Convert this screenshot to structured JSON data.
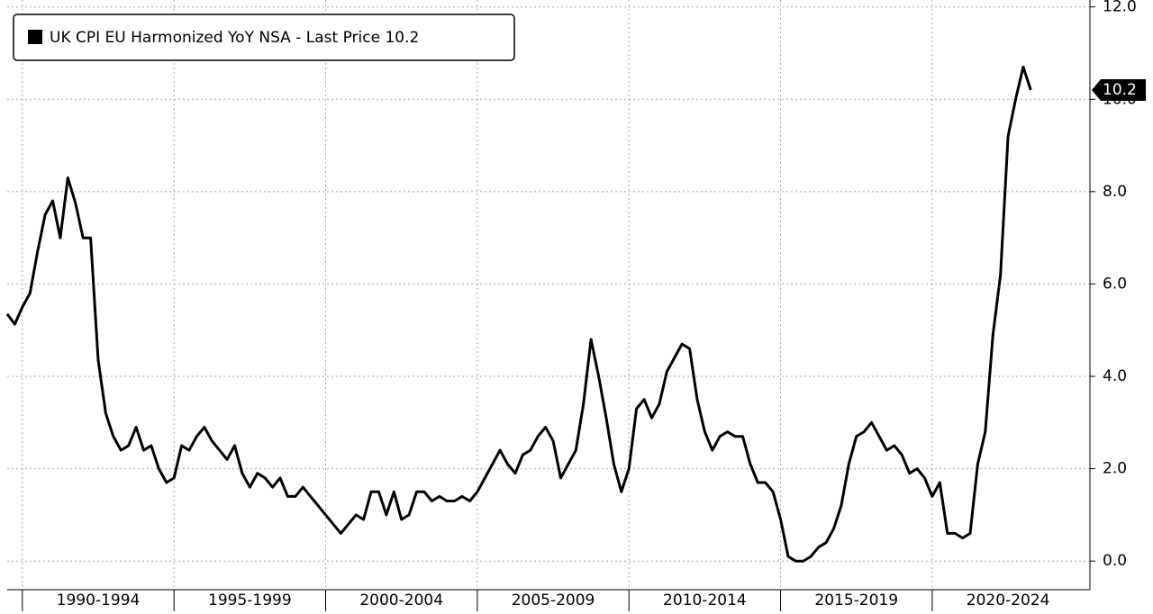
{
  "chart_data": {
    "type": "line",
    "x": [
      1989.5,
      1989.75,
      1990,
      1990.25,
      1990.5,
      1990.75,
      1991,
      1991.25,
      1991.5,
      1991.75,
      1992,
      1992.25,
      1992.5,
      1992.75,
      1993,
      1993.25,
      1993.5,
      1993.75,
      1994,
      1994.25,
      1994.5,
      1994.75,
      1995,
      1995.25,
      1995.5,
      1995.75,
      1996,
      1996.25,
      1996.5,
      1996.75,
      1997,
      1997.25,
      1997.5,
      1997.75,
      1998,
      1998.25,
      1998.5,
      1998.75,
      1999,
      1999.25,
      1999.5,
      1999.75,
      2000,
      2000.25,
      2000.5,
      2000.75,
      2001,
      2001.25,
      2001.5,
      2001.75,
      2002,
      2002.25,
      2002.5,
      2002.75,
      2003,
      2003.25,
      2003.5,
      2003.75,
      2004,
      2004.25,
      2004.5,
      2004.75,
      2005,
      2005.25,
      2005.5,
      2005.75,
      2006,
      2006.25,
      2006.5,
      2006.75,
      2007,
      2007.25,
      2007.5,
      2007.75,
      2008,
      2008.25,
      2008.5,
      2008.75,
      2009,
      2009.25,
      2009.5,
      2009.75,
      2010,
      2010.25,
      2010.5,
      2010.75,
      2011,
      2011.25,
      2011.5,
      2011.75,
      2012,
      2012.25,
      2012.5,
      2012.75,
      2013,
      2013.25,
      2013.5,
      2013.75,
      2014,
      2014.25,
      2014.5,
      2014.75,
      2015,
      2015.25,
      2015.5,
      2015.75,
      2016,
      2016.25,
      2016.5,
      2016.75,
      2017,
      2017.25,
      2017.5,
      2017.75,
      2018,
      2018.25,
      2018.5,
      2018.75,
      2019,
      2019.25,
      2019.5,
      2019.75,
      2020,
      2020.25,
      2020.5,
      2020.75,
      2021,
      2021.25,
      2021.5,
      2021.75,
      2022,
      2022.25,
      2022.5,
      2022.75,
      2023,
      2023.25
    ],
    "series": [
      {
        "name": "UK CPI EU Harmonized YoY NSA - Last Price",
        "color": "#000000",
        "values": [
          5.35,
          5.13,
          5.5,
          5.8,
          6.7,
          7.5,
          7.8,
          7.0,
          8.3,
          7.75,
          7.0,
          7.0,
          4.35,
          3.2,
          2.7,
          2.4,
          2.5,
          2.9,
          2.4,
          2.5,
          2.0,
          1.7,
          1.8,
          2.5,
          2.4,
          2.7,
          2.9,
          2.6,
          2.4,
          2.2,
          2.5,
          1.9,
          1.6,
          1.9,
          1.8,
          1.6,
          1.8,
          1.4,
          1.4,
          1.6,
          1.4,
          1.2,
          1.0,
          0.8,
          0.6,
          0.8,
          1.0,
          0.9,
          1.5,
          1.5,
          1.0,
          1.5,
          0.9,
          1.0,
          1.5,
          1.5,
          1.3,
          1.4,
          1.3,
          1.3,
          1.4,
          1.3,
          1.5,
          1.8,
          2.1,
          2.4,
          2.1,
          1.9,
          2.3,
          2.4,
          2.7,
          2.9,
          2.6,
          1.8,
          2.1,
          2.4,
          3.4,
          4.8,
          4.0,
          3.1,
          2.1,
          1.5,
          2.0,
          3.3,
          3.5,
          3.1,
          3.4,
          4.1,
          4.4,
          4.7,
          4.6,
          3.5,
          2.8,
          2.4,
          2.7,
          2.8,
          2.7,
          2.7,
          2.1,
          1.7,
          1.7,
          1.5,
          0.9,
          0.1,
          0.0,
          0.0,
          0.1,
          0.3,
          0.4,
          0.7,
          1.2,
          2.1,
          2.7,
          2.8,
          3.0,
          2.7,
          2.4,
          2.5,
          2.3,
          1.9,
          2.0,
          1.8,
          1.4,
          1.7,
          0.6,
          0.6,
          0.5,
          0.6,
          2.1,
          2.8,
          4.9,
          6.2,
          9.2,
          10.0,
          10.7,
          10.2
        ]
      }
    ],
    "xlim": [
      1989.5,
      2025.2
    ],
    "xticks": [
      {
        "value": 1992.5,
        "label": "1990-1994"
      },
      {
        "value": 1997.5,
        "label": "1995-1999"
      },
      {
        "value": 2002.5,
        "label": "2000-2004"
      },
      {
        "value": 2007.5,
        "label": "2005-2009"
      },
      {
        "value": 2012.5,
        "label": "2010-2014"
      },
      {
        "value": 2017.5,
        "label": "2015-2019"
      },
      {
        "value": 2022.5,
        "label": "2020-2024"
      }
    ],
    "xgrid": [
      1990,
      1995,
      2000,
      2005,
      2010,
      2015,
      2020
    ],
    "ylim": [
      -0.62,
      12.15
    ],
    "yticks": [
      {
        "value": 0,
        "label": "0.0"
      },
      {
        "value": 2,
        "label": "2.0"
      },
      {
        "value": 4,
        "label": "4.0"
      },
      {
        "value": 6,
        "label": "6.0"
      },
      {
        "value": 8,
        "label": "8.0"
      },
      {
        "value": 10,
        "label": "10.0"
      },
      {
        "value": 12,
        "label": "12.0"
      }
    ],
    "grid": true,
    "legend": "top-left"
  }
}
